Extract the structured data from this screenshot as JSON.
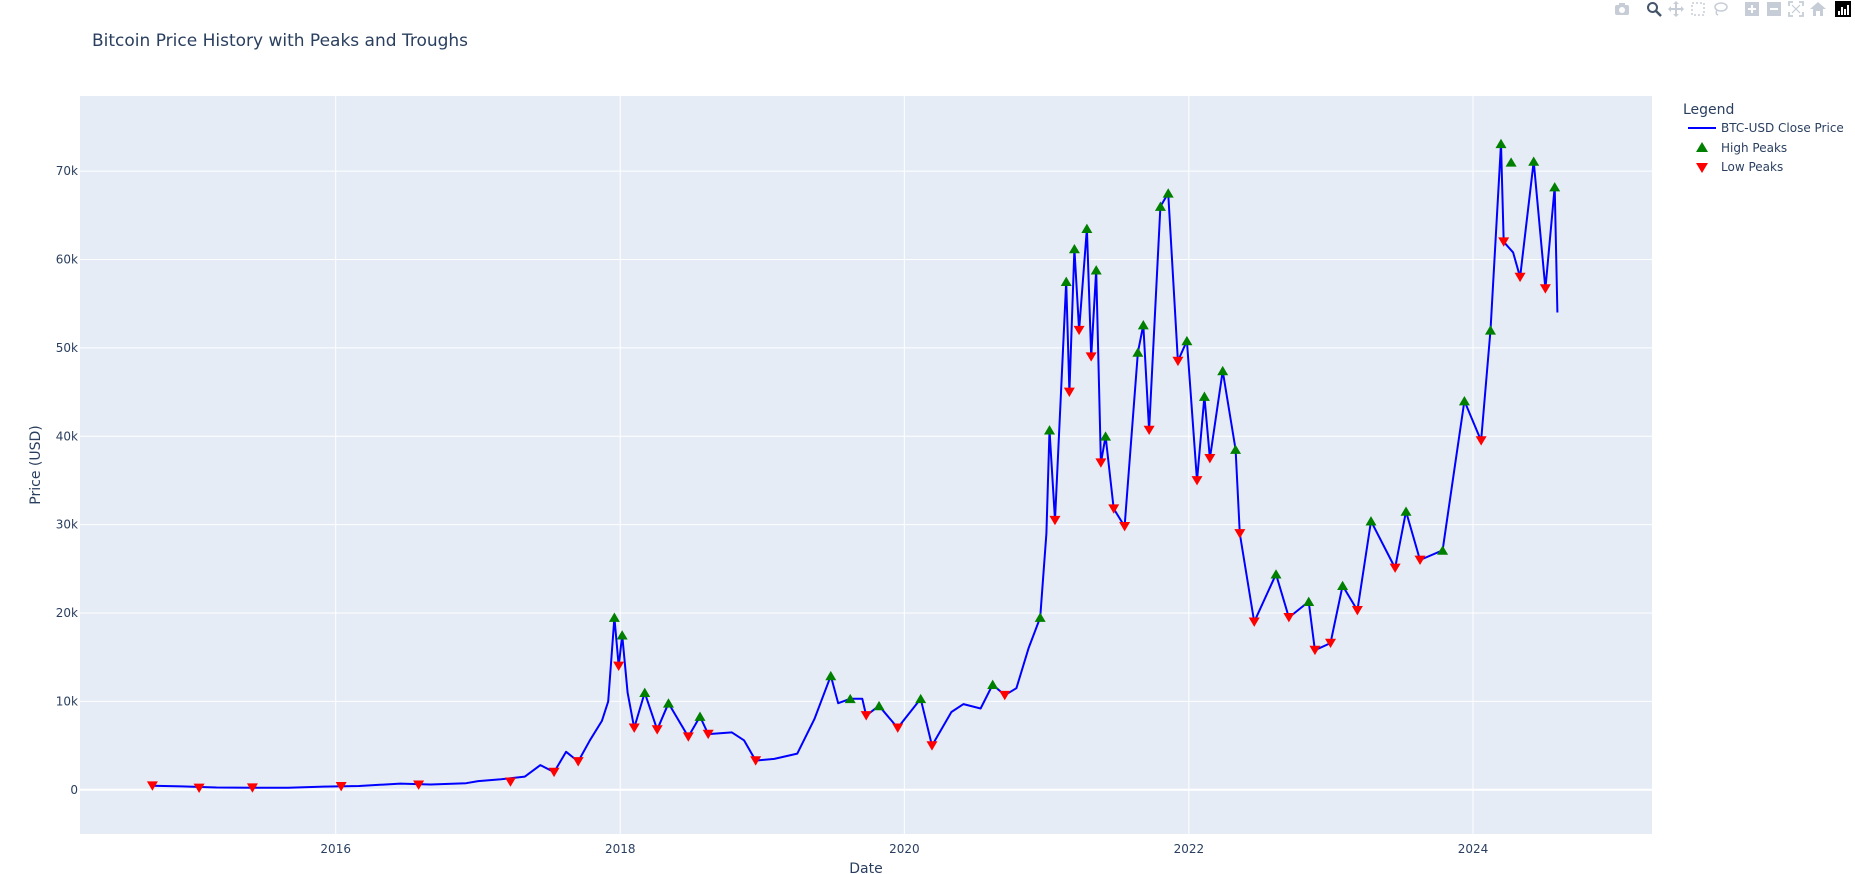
{
  "chart_data": {
    "type": "line",
    "title": "Bitcoin Price History with Peaks and Troughs",
    "xlabel": "Date",
    "ylabel": "Price (USD)",
    "xlim": [
      "2014-03-15",
      "2025-04-05"
    ],
    "ylim": [
      -5000,
      78500
    ],
    "x_tick_labels": [
      "2016",
      "2018",
      "2020",
      "2022",
      "2024"
    ],
    "x_tick_dates": [
      "2016-01-01",
      "2018-01-01",
      "2020-01-01",
      "2022-01-01",
      "2024-01-01"
    ],
    "y_ticks": [
      0,
      10000,
      20000,
      30000,
      40000,
      50000,
      60000,
      70000
    ],
    "y_tick_labels": [
      "0",
      "10k",
      "20k",
      "30k",
      "40k",
      "50k",
      "60k",
      "70k"
    ],
    "grid": true,
    "legend_title": "Legend",
    "legend_position": "right",
    "series": [
      {
        "name": "BTC-USD Close Price",
        "kind": "line",
        "color": "#0000ff",
        "points": [
          [
            "2014-09-17",
            457
          ],
          [
            "2014-12-01",
            380
          ],
          [
            "2015-03-01",
            260
          ],
          [
            "2015-06-01",
            225
          ],
          [
            "2015-09-01",
            230
          ],
          [
            "2015-12-01",
            360
          ],
          [
            "2016-03-01",
            430
          ],
          [
            "2016-06-15",
            700
          ],
          [
            "2016-09-01",
            600
          ],
          [
            "2016-12-01",
            750
          ],
          [
            "2017-01-01",
            980
          ],
          [
            "2017-03-01",
            1200
          ],
          [
            "2017-05-01",
            1500
          ],
          [
            "2017-06-10",
            2800
          ],
          [
            "2017-07-15",
            2000
          ],
          [
            "2017-08-15",
            4300
          ],
          [
            "2017-09-15",
            3200
          ],
          [
            "2017-10-15",
            5600
          ],
          [
            "2017-11-15",
            7800
          ],
          [
            "2017-12-01",
            10000
          ],
          [
            "2017-12-17",
            19500
          ],
          [
            "2017-12-28",
            14000
          ],
          [
            "2018-01-06",
            17500
          ],
          [
            "2018-01-20",
            11000
          ],
          [
            "2018-02-06",
            7000
          ],
          [
            "2018-03-05",
            11000
          ],
          [
            "2018-04-06",
            6800
          ],
          [
            "2018-05-05",
            9800
          ],
          [
            "2018-06-25",
            6000
          ],
          [
            "2018-07-25",
            8300
          ],
          [
            "2018-08-15",
            6300
          ],
          [
            "2018-10-15",
            6500
          ],
          [
            "2018-11-15",
            5600
          ],
          [
            "2018-12-15",
            3300
          ],
          [
            "2019-02-01",
            3500
          ],
          [
            "2019-04-01",
            4100
          ],
          [
            "2019-05-15",
            8000
          ],
          [
            "2019-06-26",
            12900
          ],
          [
            "2019-07-15",
            9800
          ],
          [
            "2019-08-15",
            10300
          ],
          [
            "2019-09-15",
            10300
          ],
          [
            "2019-09-25",
            8400
          ],
          [
            "2019-10-28",
            9500
          ],
          [
            "2019-12-15",
            7000
          ],
          [
            "2020-02-12",
            10300
          ],
          [
            "2020-03-12",
            5000
          ],
          [
            "2020-05-01",
            8800
          ],
          [
            "2020-06-01",
            9700
          ],
          [
            "2020-07-15",
            9200
          ],
          [
            "2020-08-15",
            11900
          ],
          [
            "2020-09-15",
            10700
          ],
          [
            "2020-10-15",
            11500
          ],
          [
            "2020-11-15",
            16000
          ],
          [
            "2020-12-15",
            19500
          ],
          [
            "2020-12-31",
            29000
          ],
          [
            "2021-01-08",
            40700
          ],
          [
            "2021-01-22",
            30500
          ],
          [
            "2021-02-20",
            57500
          ],
          [
            "2021-02-28",
            45000
          ],
          [
            "2021-03-13",
            61200
          ],
          [
            "2021-03-25",
            52000
          ],
          [
            "2021-04-14",
            63500
          ],
          [
            "2021-04-25",
            49000
          ],
          [
            "2021-05-08",
            58800
          ],
          [
            "2021-05-20",
            37000
          ],
          [
            "2021-06-01",
            40000
          ],
          [
            "2021-06-22",
            31800
          ],
          [
            "2021-07-20",
            29800
          ],
          [
            "2021-08-23",
            49500
          ],
          [
            "2021-09-06",
            52600
          ],
          [
            "2021-09-21",
            40700
          ],
          [
            "2021-10-20",
            66000
          ],
          [
            "2021-11-09",
            67500
          ],
          [
            "2021-12-04",
            48500
          ],
          [
            "2021-12-27",
            50800
          ],
          [
            "2022-01-22",
            35000
          ],
          [
            "2022-02-10",
            44500
          ],
          [
            "2022-02-24",
            37500
          ],
          [
            "2022-03-29",
            47400
          ],
          [
            "2022-05-01",
            38500
          ],
          [
            "2022-05-12",
            29000
          ],
          [
            "2022-06-18",
            19000
          ],
          [
            "2022-08-13",
            24400
          ],
          [
            "2022-09-15",
            19500
          ],
          [
            "2022-11-05",
            21300
          ],
          [
            "2022-11-21",
            15800
          ],
          [
            "2022-12-31",
            16600
          ],
          [
            "2023-01-31",
            23100
          ],
          [
            "2023-03-10",
            20300
          ],
          [
            "2023-04-14",
            30400
          ],
          [
            "2023-06-15",
            25100
          ],
          [
            "2023-07-13",
            31500
          ],
          [
            "2023-08-18",
            26000
          ],
          [
            "2023-10-15",
            27100
          ],
          [
            "2023-11-15",
            36500
          ],
          [
            "2023-12-10",
            44000
          ],
          [
            "2024-01-22",
            39500
          ],
          [
            "2024-02-15",
            52000
          ],
          [
            "2024-03-13",
            73100
          ],
          [
            "2024-03-20",
            62000
          ],
          [
            "2024-04-13",
            60800
          ],
          [
            "2024-05-01",
            58000
          ],
          [
            "2024-06-05",
            71100
          ],
          [
            "2024-07-05",
            56700
          ],
          [
            "2024-07-29",
            68200
          ],
          [
            "2024-08-05",
            54000
          ]
        ]
      },
      {
        "name": "High Peaks",
        "kind": "markers",
        "symbol": "triangle-up",
        "color": "#008000",
        "points": [
          [
            "2017-12-17",
            19500
          ],
          [
            "2018-01-06",
            17500
          ],
          [
            "2018-03-05",
            11000
          ],
          [
            "2018-05-05",
            9800
          ],
          [
            "2018-07-25",
            8300
          ],
          [
            "2019-06-26",
            12900
          ],
          [
            "2019-08-15",
            10300
          ],
          [
            "2019-10-28",
            9500
          ],
          [
            "2020-02-12",
            10300
          ],
          [
            "2020-08-15",
            11900
          ],
          [
            "2020-12-15",
            19500
          ],
          [
            "2021-01-08",
            40700
          ],
          [
            "2021-02-20",
            57500
          ],
          [
            "2021-03-13",
            61200
          ],
          [
            "2021-04-14",
            63500
          ],
          [
            "2021-05-08",
            58800
          ],
          [
            "2021-06-01",
            40000
          ],
          [
            "2021-08-23",
            49500
          ],
          [
            "2021-09-06",
            52600
          ],
          [
            "2021-10-20",
            66000
          ],
          [
            "2021-11-09",
            67500
          ],
          [
            "2021-12-27",
            50800
          ],
          [
            "2022-02-10",
            44500
          ],
          [
            "2022-03-29",
            47400
          ],
          [
            "2022-05-01",
            38500
          ],
          [
            "2022-08-13",
            24400
          ],
          [
            "2022-11-05",
            21300
          ],
          [
            "2023-01-31",
            23100
          ],
          [
            "2023-04-14",
            30400
          ],
          [
            "2023-07-13",
            31500
          ],
          [
            "2023-10-15",
            27100
          ],
          [
            "2023-12-10",
            44000
          ],
          [
            "2024-02-15",
            52000
          ],
          [
            "2024-03-13",
            73100
          ],
          [
            "2024-04-08",
            71000
          ],
          [
            "2024-06-05",
            71100
          ],
          [
            "2024-07-29",
            68200
          ]
        ]
      },
      {
        "name": "Low Peaks",
        "kind": "markers",
        "symbol": "triangle-down",
        "color": "#ff0000",
        "points": [
          [
            "2014-09-17",
            457
          ],
          [
            "2015-01-15",
            200
          ],
          [
            "2015-06-01",
            225
          ],
          [
            "2016-01-15",
            380
          ],
          [
            "2016-08-01",
            550
          ],
          [
            "2017-03-25",
            900
          ],
          [
            "2017-07-15",
            2000
          ],
          [
            "2017-09-15",
            3200
          ],
          [
            "2017-12-28",
            14000
          ],
          [
            "2018-02-06",
            7000
          ],
          [
            "2018-04-06",
            6800
          ],
          [
            "2018-06-25",
            6000
          ],
          [
            "2018-08-15",
            6300
          ],
          [
            "2018-12-15",
            3300
          ],
          [
            "2019-09-25",
            8400
          ],
          [
            "2019-12-15",
            7000
          ],
          [
            "2020-03-12",
            5000
          ],
          [
            "2020-09-15",
            10700
          ],
          [
            "2021-01-22",
            30500
          ],
          [
            "2021-02-28",
            45000
          ],
          [
            "2021-03-25",
            52000
          ],
          [
            "2021-04-25",
            49000
          ],
          [
            "2021-05-20",
            37000
          ],
          [
            "2021-06-22",
            31800
          ],
          [
            "2021-07-20",
            29800
          ],
          [
            "2021-09-21",
            40700
          ],
          [
            "2021-12-04",
            48500
          ],
          [
            "2022-01-22",
            35000
          ],
          [
            "2022-02-24",
            37500
          ],
          [
            "2022-05-12",
            29000
          ],
          [
            "2022-06-18",
            19000
          ],
          [
            "2022-09-15",
            19500
          ],
          [
            "2022-11-21",
            15800
          ],
          [
            "2022-12-31",
            16600
          ],
          [
            "2023-03-10",
            20300
          ],
          [
            "2023-06-15",
            25100
          ],
          [
            "2023-08-18",
            26000
          ],
          [
            "2024-01-22",
            39500
          ],
          [
            "2024-03-20",
            62000
          ],
          [
            "2024-05-01",
            58000
          ],
          [
            "2024-07-05",
            56700
          ]
        ]
      }
    ]
  }
}
